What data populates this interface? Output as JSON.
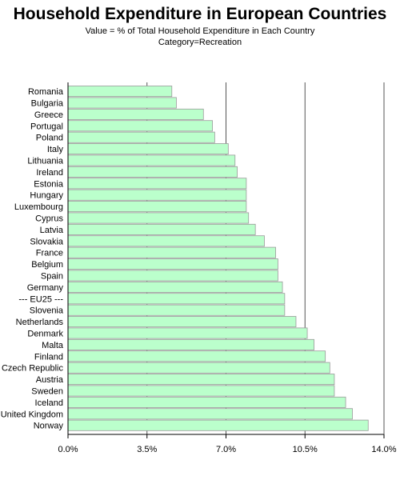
{
  "chart_data": {
    "type": "bar",
    "orientation": "horizontal",
    "title": "Household Expenditure in European Countries",
    "subtitle": "Value = % of Total Household Expenditure in Each Country",
    "subtitle2": "Category=Recreation",
    "xlabel": "",
    "ylabel": "",
    "xlim": [
      0,
      14
    ],
    "xticks": [
      0,
      3.5,
      7,
      10.5,
      14
    ],
    "xtick_labels": [
      "0.0%",
      "3.5%",
      "7.0%",
      "10.5%",
      "14.0%"
    ],
    "grid": true,
    "bar_color": "#bbffcc",
    "bar_edge_color": "#9a9a9a",
    "categories": [
      "Romania",
      "Bulgaria",
      "Greece",
      "Portugal",
      "Poland",
      "Italy",
      "Lithuania",
      "Ireland",
      "Estonia",
      "Hungary",
      "Luxembourg",
      "Cyprus",
      "Latvia",
      "Slovakia",
      "France",
      "Belgium",
      "Spain",
      "Germany",
      "--- EU25 ---",
      "Slovenia",
      "Netherlands",
      "Denmark",
      "Malta",
      "Finland",
      "Czech Republic",
      "Austria",
      "Sweden",
      "Iceland",
      "United Kingdom",
      "Norway"
    ],
    "values": [
      4.6,
      4.8,
      6.0,
      6.4,
      6.5,
      7.1,
      7.4,
      7.5,
      7.9,
      7.9,
      7.9,
      8.0,
      8.3,
      8.7,
      9.2,
      9.3,
      9.3,
      9.5,
      9.6,
      9.6,
      10.1,
      10.6,
      10.9,
      11.4,
      11.6,
      11.8,
      11.8,
      12.3,
      12.6,
      13.3
    ]
  }
}
